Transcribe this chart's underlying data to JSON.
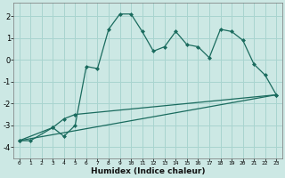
{
  "xlabel": "Humidex (Indice chaleur)",
  "ylabel": "",
  "background_color": "#cce8e4",
  "grid_color": "#a8d4cf",
  "line_color": "#1a6b5e",
  "xlim": [
    -0.5,
    23.5
  ],
  "ylim": [
    -4.5,
    2.6
  ],
  "xticks": [
    0,
    1,
    2,
    3,
    4,
    5,
    6,
    7,
    8,
    9,
    10,
    11,
    12,
    13,
    14,
    15,
    16,
    17,
    18,
    19,
    20,
    21,
    22,
    23
  ],
  "yticks": [
    -4,
    -3,
    -2,
    -1,
    0,
    1,
    2
  ],
  "series1_x": [
    0,
    1,
    3,
    4,
    5,
    6,
    7,
    8,
    9,
    10,
    11,
    12,
    13,
    14,
    15,
    16,
    17,
    18,
    19,
    20,
    21,
    22,
    23
  ],
  "series1_y": [
    -3.7,
    -3.7,
    -3.1,
    -3.5,
    -3.0,
    -0.3,
    -0.4,
    1.4,
    2.1,
    2.1,
    1.3,
    0.4,
    0.6,
    1.3,
    0.7,
    0.6,
    0.1,
    1.4,
    1.3,
    0.9,
    -0.2,
    -0.7,
    -1.6
  ],
  "series2_x": [
    0,
    3,
    4,
    5,
    23
  ],
  "series2_y": [
    -3.7,
    -3.1,
    -2.7,
    -2.5,
    -1.6
  ],
  "series3_x": [
    0,
    23
  ],
  "series3_y": [
    -3.7,
    -1.6
  ]
}
